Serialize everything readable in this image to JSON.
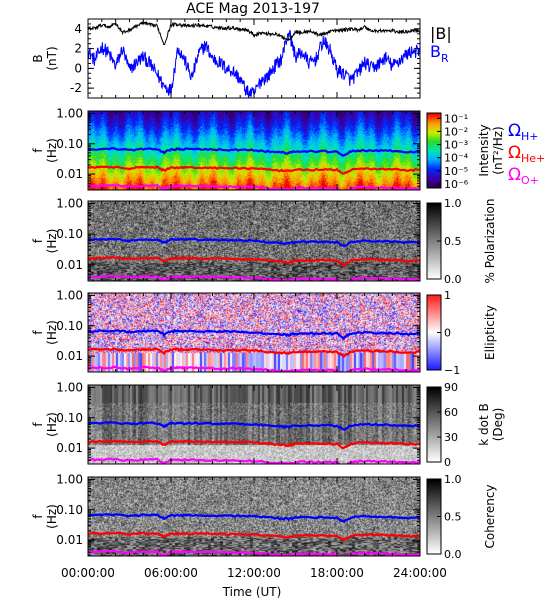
{
  "chart_data": {
    "type": "multi-panel",
    "title": "ACE Mag 2013-197",
    "xlabel": "Time (UT)",
    "x_ticks": [
      "00:00:00",
      "06:00:00",
      "12:00:00",
      "18:00:00",
      "24:00:00"
    ],
    "x_range_hours": [
      0,
      24
    ],
    "panels": [
      {
        "id": "field",
        "type": "line",
        "ylabel_top": "B",
        "ylabel_bottom": "(nT)",
        "ylim": [
          -3,
          5
        ],
        "y_ticks": [
          "4",
          "2",
          "0",
          "-2"
        ],
        "series": [
          {
            "name": "|B|",
            "color": "#000000",
            "x": [
              0,
              0.5,
              1,
              1.5,
              2,
              2.5,
              3,
              3.5,
              4,
              4.5,
              5,
              5.5,
              6,
              6.5,
              7,
              7.5,
              8,
              8.5,
              9,
              9.5,
              10,
              10.5,
              11,
              11.5,
              12,
              12.5,
              13,
              13.5,
              14,
              14.5,
              15,
              15.5,
              16,
              16.5,
              17,
              17.5,
              18,
              18.5,
              19,
              19.5,
              20,
              20.5,
              21,
              21.5,
              22,
              22.5,
              23,
              23.5,
              24
            ],
            "y": [
              4.0,
              4.1,
              4.4,
              4.2,
              4.6,
              3.6,
              3.9,
              4.3,
              4.6,
              4.4,
              4.3,
              2.4,
              4.4,
              4.5,
              4.3,
              4.3,
              4.4,
              4.3,
              4.2,
              4.1,
              4.1,
              4.1,
              4.0,
              3.9,
              3.4,
              3.6,
              3.5,
              3.5,
              3.2,
              2.9,
              3.7,
              3.6,
              3.8,
              3.5,
              3.4,
              3.8,
              3.8,
              3.9,
              4.0,
              3.9,
              4.2,
              3.8,
              3.8,
              3.8,
              3.8,
              3.7,
              3.7,
              3.9,
              3.8
            ]
          },
          {
            "name": "B",
            "subscript": "R",
            "color": "#0000ff",
            "x": [
              0,
              0.5,
              1,
              1.5,
              2,
              2.5,
              3,
              3.5,
              4,
              4.5,
              5,
              5.5,
              6,
              6.5,
              7,
              7.5,
              8,
              8.5,
              9,
              9.5,
              10,
              10.5,
              11,
              11.5,
              12,
              12.5,
              13,
              13.5,
              14,
              14.5,
              15,
              15.5,
              16,
              16.5,
              17,
              17.5,
              18,
              18.5,
              19,
              19.5,
              20,
              20.5,
              21,
              21.5,
              22,
              22.5,
              23,
              23.5,
              24
            ],
            "y": [
              1.8,
              0.8,
              2.2,
              1.5,
              0.2,
              2.0,
              -0.2,
              0.6,
              1.2,
              0.4,
              -0.6,
              -1.8,
              -2.2,
              2.1,
              0.8,
              -1.0,
              1.5,
              2.4,
              1.0,
              0.6,
              0.0,
              -0.3,
              -1.1,
              -2.4,
              -2.6,
              -1.2,
              -0.8,
              0.2,
              1.0,
              3.8,
              1.2,
              1.6,
              0.5,
              1.0,
              2.8,
              1.8,
              -0.2,
              -0.5,
              -1.2,
              -0.5,
              0.6,
              0.0,
              0.4,
              1.1,
              0.2,
              0.8,
              1.4,
              1.8,
              1.6
            ]
          }
        ]
      },
      {
        "id": "intensity",
        "type": "heatmap",
        "ylabel_top": "f",
        "ylabel_bottom": "(Hz)",
        "ylim": [
          0.003,
          1.2
        ],
        "y_scale": "log",
        "y_ticks": [
          "1.00",
          "0.10",
          "0.01"
        ],
        "colorbar_label": "Intensity",
        "colorbar_unit": "(nT²/Hz)",
        "colorbar_ticks": [
          "10⁻¹",
          "10⁻²",
          "10⁻³",
          "10⁻⁴",
          "10⁻⁵",
          "10⁻⁶"
        ],
        "colormap": "rainbow",
        "colorbar_range": [
          -6.3,
          -0.6
        ]
      },
      {
        "id": "polarization",
        "type": "heatmap",
        "ylabel_top": "f",
        "ylabel_bottom": "(Hz)",
        "ylim": [
          0.003,
          1.2
        ],
        "y_scale": "log",
        "y_ticks": [
          "1.00",
          "0.10",
          "0.01"
        ],
        "colorbar_label": "% Polarization",
        "colorbar_unit": "",
        "colorbar_ticks": [
          "1.0",
          "0.5",
          "0.0"
        ],
        "colormap": "gray_reversed",
        "colorbar_range": [
          0,
          1
        ]
      },
      {
        "id": "ellipticity",
        "type": "heatmap",
        "ylabel_top": "f",
        "ylabel_bottom": "(Hz)",
        "ylim": [
          0.003,
          1.2
        ],
        "y_scale": "log",
        "y_ticks": [
          "1.00",
          "0.10",
          "0.01"
        ],
        "colorbar_label": "Ellipticity",
        "colorbar_unit": "",
        "colorbar_ticks": [
          "1",
          "0",
          "−1"
        ],
        "colormap": "blue_white_red",
        "colorbar_range": [
          -1,
          1
        ]
      },
      {
        "id": "kdotb",
        "type": "heatmap",
        "ylabel_top": "f",
        "ylabel_bottom": "(Hz)",
        "ylim": [
          0.003,
          1.2
        ],
        "y_scale": "log",
        "y_ticks": [
          "1.00",
          "0.10",
          "0.01"
        ],
        "colorbar_label": "k dot B",
        "colorbar_unit": "(Deg)",
        "colorbar_ticks": [
          "90",
          "60",
          "30",
          "0"
        ],
        "colormap": "gray_reversed",
        "colorbar_range": [
          0,
          90
        ]
      },
      {
        "id": "coherency",
        "type": "heatmap",
        "ylabel_top": "f",
        "ylabel_bottom": "(Hz)",
        "ylim": [
          0.003,
          1.2
        ],
        "y_scale": "log",
        "y_ticks": [
          "1.00",
          "0.10",
          "0.01"
        ],
        "colorbar_label": "Coherency",
        "colorbar_unit": "",
        "colorbar_ticks": [
          "1.0",
          "0.5",
          "0.0"
        ],
        "colormap": "gray_reversed",
        "colorbar_range": [
          0,
          1
        ]
      }
    ],
    "gyrofrequencies": [
      {
        "name": "Ω",
        "subscript": "H+",
        "color": "#0000ff",
        "x": [
          0,
          1,
          2,
          3,
          4,
          5,
          5.5,
          6,
          6.5,
          7,
          8,
          9,
          10,
          11,
          12,
          13,
          14,
          14.5,
          15,
          16,
          17,
          18,
          18.5,
          19,
          20,
          21,
          22,
          23,
          24
        ],
        "y": [
          0.065,
          0.067,
          0.069,
          0.062,
          0.067,
          0.067,
          0.052,
          0.066,
          0.066,
          0.066,
          0.066,
          0.064,
          0.063,
          0.063,
          0.061,
          0.055,
          0.052,
          0.049,
          0.056,
          0.056,
          0.056,
          0.055,
          0.04,
          0.056,
          0.061,
          0.058,
          0.058,
          0.053,
          0.056
        ]
      },
      {
        "name": "Ω",
        "subscript": "He+",
        "color": "#ff0000",
        "x": [
          0,
          1,
          2,
          3,
          4,
          5,
          5.5,
          6,
          6.5,
          7,
          8,
          9,
          10,
          11,
          12,
          13,
          14,
          14.5,
          15,
          16,
          17,
          18,
          18.5,
          19,
          20,
          21,
          22,
          23,
          24
        ],
        "y": [
          0.0163,
          0.0168,
          0.0172,
          0.0155,
          0.0168,
          0.0168,
          0.013,
          0.0165,
          0.0165,
          0.0165,
          0.0165,
          0.016,
          0.0158,
          0.0158,
          0.0153,
          0.0138,
          0.013,
          0.0123,
          0.014,
          0.014,
          0.014,
          0.0138,
          0.01,
          0.014,
          0.0153,
          0.0145,
          0.0145,
          0.0133,
          0.014
        ]
      },
      {
        "name": "Ω",
        "subscript": "O+",
        "color": "#ff00ff",
        "x": [
          0,
          1,
          2,
          3,
          4,
          5,
          5.5,
          6,
          6.5,
          7,
          8,
          9,
          10,
          11,
          12,
          13,
          14,
          14.5,
          15,
          16,
          17,
          18,
          18.5,
          19,
          20,
          21,
          22,
          23,
          24
        ],
        "y": [
          0.0041,
          0.0042,
          0.0043,
          0.0039,
          0.0042,
          0.0042,
          0.0032,
          0.0041,
          0.0041,
          0.0041,
          0.0041,
          0.004,
          0.0039,
          0.0039,
          0.0038,
          0.0035,
          0.0032,
          0.0031,
          0.0035,
          0.0035,
          0.0035,
          0.0034,
          0.0025,
          0.0035,
          0.0038,
          0.0036,
          0.0036,
          0.0033,
          0.0035
        ]
      }
    ]
  }
}
